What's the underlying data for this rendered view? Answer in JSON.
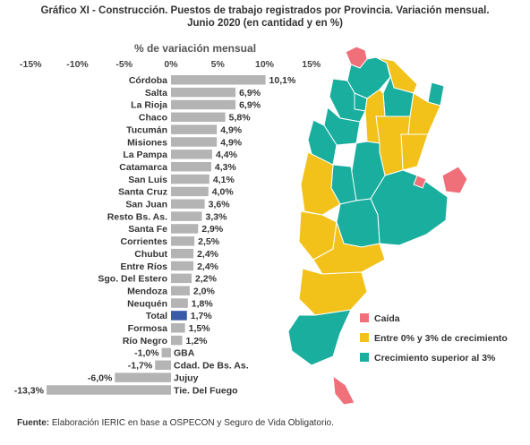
{
  "title_line1": "Gráfico XI - Construcción. Puestos de trabajo registrados por Provincia. Variación mensual.",
  "title_line2": "Junio 2020 (en cantidad y en %)",
  "source_label": "Fuente:",
  "source_text": "Elaboración IERIC en base a OSPECON y Seguro de Vida Obligatorio.",
  "chart_data": {
    "type": "bar",
    "orientation": "horizontal",
    "title": "% de variación mensual",
    "xlim": [
      -15,
      15
    ],
    "xticks": [
      -15,
      -10,
      -5,
      0,
      5,
      10,
      15
    ],
    "xtick_labels": [
      "-15%",
      "-10%",
      "-5%",
      "0%",
      "5%",
      "10%",
      "15%"
    ],
    "categories": [
      "Córdoba",
      "Salta",
      "La Rioja",
      "Chaco",
      "Tucumán",
      "Misiones",
      "La Pampa",
      "Catamarca",
      "San Luis",
      "Santa Cruz",
      "San Juan",
      "Resto Bs. As.",
      "Santa Fe",
      "Corrientes",
      "Chubut",
      "Entre Ríos",
      "Sgo. Del Estero",
      "Mendoza",
      "Neuquén",
      "Total",
      "Formosa",
      "Río Negro",
      "GBA",
      "Cdad. De Bs. As.",
      "Jujuy",
      "Tie. Del Fuego"
    ],
    "values": [
      10.1,
      6.9,
      6.9,
      5.8,
      4.9,
      4.9,
      4.4,
      4.3,
      4.1,
      4.0,
      3.6,
      3.3,
      2.9,
      2.5,
      2.4,
      2.4,
      2.2,
      2.0,
      1.8,
      1.7,
      1.5,
      1.2,
      -1.0,
      -1.7,
      -6.0,
      -13.3
    ],
    "value_labels": [
      "10,1%",
      "6,9%",
      "6,9%",
      "5,8%",
      "4,9%",
      "4,9%",
      "4,4%",
      "4,3%",
      "4,1%",
      "4,0%",
      "3,6%",
      "3,3%",
      "2,9%",
      "2,5%",
      "2,4%",
      "2,4%",
      "2,2%",
      "2,0%",
      "1,8%",
      "1,7%",
      "1,5%",
      "1,2%",
      "-1,0%",
      "-1,7%",
      "-6,0%",
      "-13,3%"
    ],
    "highlight": "Total",
    "bar_color": "#b4b4b4",
    "highlight_color": "#3a5ba8"
  },
  "map_legend": [
    {
      "label": "Caída",
      "color": "#f0707a"
    },
    {
      "label": "Entre 0% y 3% de crecimiento",
      "color": "#f2c21b"
    },
    {
      "label": "Crecimiento superior al 3%",
      "color": "#1aae9f"
    }
  ]
}
